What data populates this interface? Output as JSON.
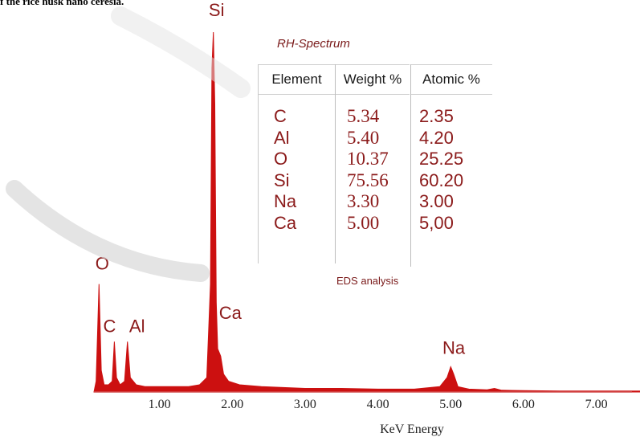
{
  "caption_fragment": "f the rice husk nano ceresia.",
  "table": {
    "title": "RH-Spectrum",
    "headers": [
      "Element",
      "Weight %",
      "Atomic %"
    ],
    "elements": [
      "C",
      "Al",
      "O",
      "Si",
      "Na",
      "Ca"
    ],
    "weight": [
      "5.34",
      "5.40",
      "10.37",
      "75.56",
      "3.30",
      "5.00"
    ],
    "atomic": [
      "2.35",
      "4.20",
      "25.25",
      "60.20",
      "3.00",
      "5,00"
    ],
    "footer": "EDS analysis"
  },
  "chart_data": {
    "type": "line",
    "xlabel": "KeV Energy",
    "ylabel": "",
    "xlim": [
      0.1,
      7.6
    ],
    "x_ticks": [
      1.0,
      2.0,
      3.0,
      4.0,
      5.0,
      6.0,
      7.0
    ],
    "x_tick_labels": [
      "1.00",
      "2.00",
      "3.00",
      "4.00",
      "5.00",
      "6.00",
      "7.00"
    ],
    "ylim": [
      0,
      100
    ],
    "y_axis_labels_shown": false,
    "grid": false,
    "line_color": "#cc1010",
    "peaks": [
      {
        "label": "O",
        "energy": 0.17,
        "intensity": 30
      },
      {
        "label": "C",
        "energy": 0.38,
        "intensity": 14
      },
      {
        "label": "Al",
        "energy": 0.56,
        "intensity": 14
      },
      {
        "label": "Si",
        "energy": 1.74,
        "intensity": 100
      },
      {
        "label": "Ca",
        "energy": 1.84,
        "intensity": 10
      },
      {
        "label": "Na",
        "energy": 5.02,
        "intensity": 7
      }
    ],
    "spectrum": {
      "x": [
        0.1,
        0.13,
        0.17,
        0.2,
        0.24,
        0.3,
        0.35,
        0.38,
        0.41,
        0.46,
        0.52,
        0.56,
        0.6,
        0.68,
        0.8,
        1.0,
        1.2,
        1.4,
        1.55,
        1.65,
        1.7,
        1.72,
        1.74,
        1.76,
        1.78,
        1.8,
        1.84,
        1.88,
        1.95,
        2.1,
        2.4,
        3.0,
        3.5,
        4.0,
        4.5,
        4.85,
        4.95,
        5.0,
        5.04,
        5.1,
        5.25,
        5.5,
        5.6,
        5.7,
        6.0,
        6.5,
        7.0,
        7.6
      ],
      "y": [
        0,
        3,
        30,
        6,
        2,
        2,
        3,
        14,
        4,
        2,
        3,
        14,
        4,
        2,
        1.5,
        1.5,
        1.5,
        1.5,
        2,
        4,
        30,
        90,
        100,
        80,
        25,
        12,
        10,
        5,
        3,
        2,
        1.5,
        1,
        1,
        0.8,
        0.8,
        1.5,
        4,
        7,
        5,
        1.5,
        0.8,
        0.6,
        1,
        0.5,
        0.4,
        0.3,
        0.3,
        0.3
      ]
    }
  }
}
